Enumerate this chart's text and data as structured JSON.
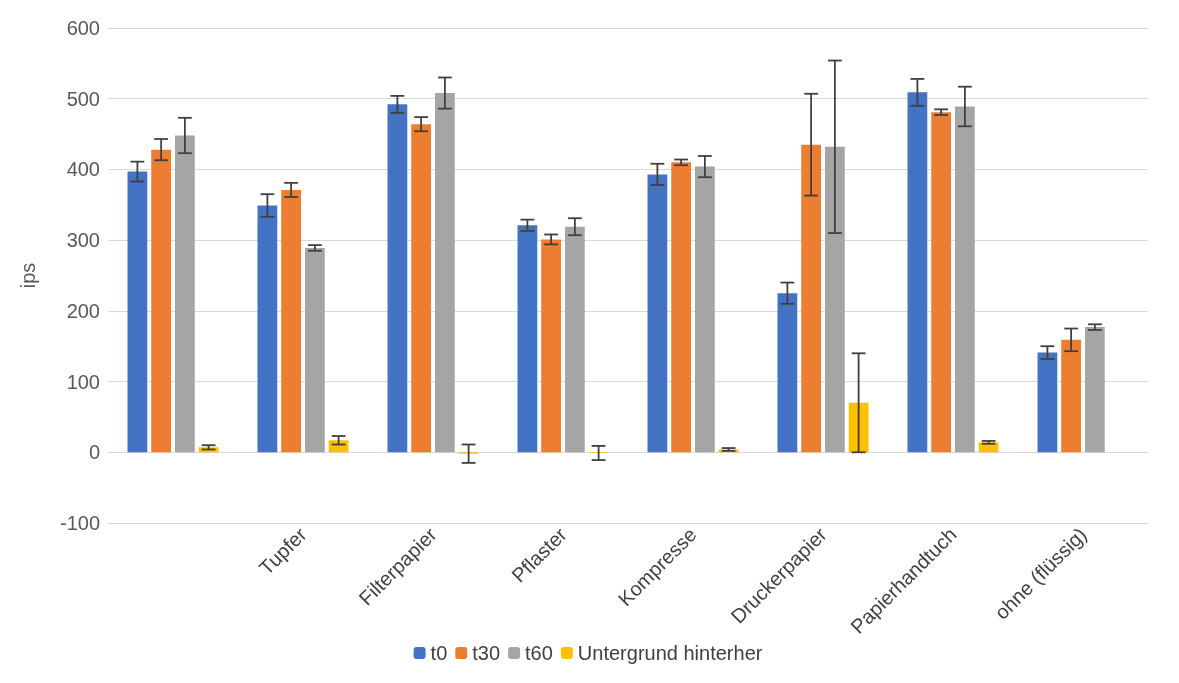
{
  "chart_data": {
    "type": "bar",
    "ylabel": "ips",
    "categories": [
      null,
      "Tupfer",
      "Filterpapier",
      "Pflaster",
      "Kompresse",
      "Druckerpapier",
      "Papierhandtuch",
      "ohne (flüssig)"
    ],
    "series": [
      {
        "name": "t0",
        "color": "#4472c4",
        "values": [
          397,
          349,
          492,
          321,
          393,
          225,
          509,
          141
        ],
        "errors": [
          14,
          16,
          12,
          8,
          15,
          15,
          19,
          9
        ]
      },
      {
        "name": "t30",
        "color": "#ed7d31",
        "values": [
          428,
          371,
          464,
          301,
          410,
          435,
          481,
          159
        ],
        "errors": [
          15,
          10,
          10,
          7,
          4,
          72,
          4,
          16
        ]
      },
      {
        "name": "t60",
        "color": "#a5a5a5",
        "values": [
          448,
          289,
          508,
          319,
          404,
          432,
          489,
          177
        ],
        "errors": [
          25,
          4,
          22,
          12,
          15,
          122,
          28,
          4
        ]
      },
      {
        "name": "Untergrund hinterher",
        "color": "#ffc000",
        "values": [
          7,
          17,
          -2,
          -1,
          4,
          70,
          14,
          null
        ],
        "errors": [
          3,
          6,
          13,
          10,
          2,
          70,
          2,
          null
        ]
      }
    ],
    "ylim": [
      -100,
      600
    ],
    "yticks": [
      -100,
      0,
      100,
      200,
      300,
      400,
      500,
      600
    ],
    "grid": "y",
    "legend": "bottom"
  }
}
